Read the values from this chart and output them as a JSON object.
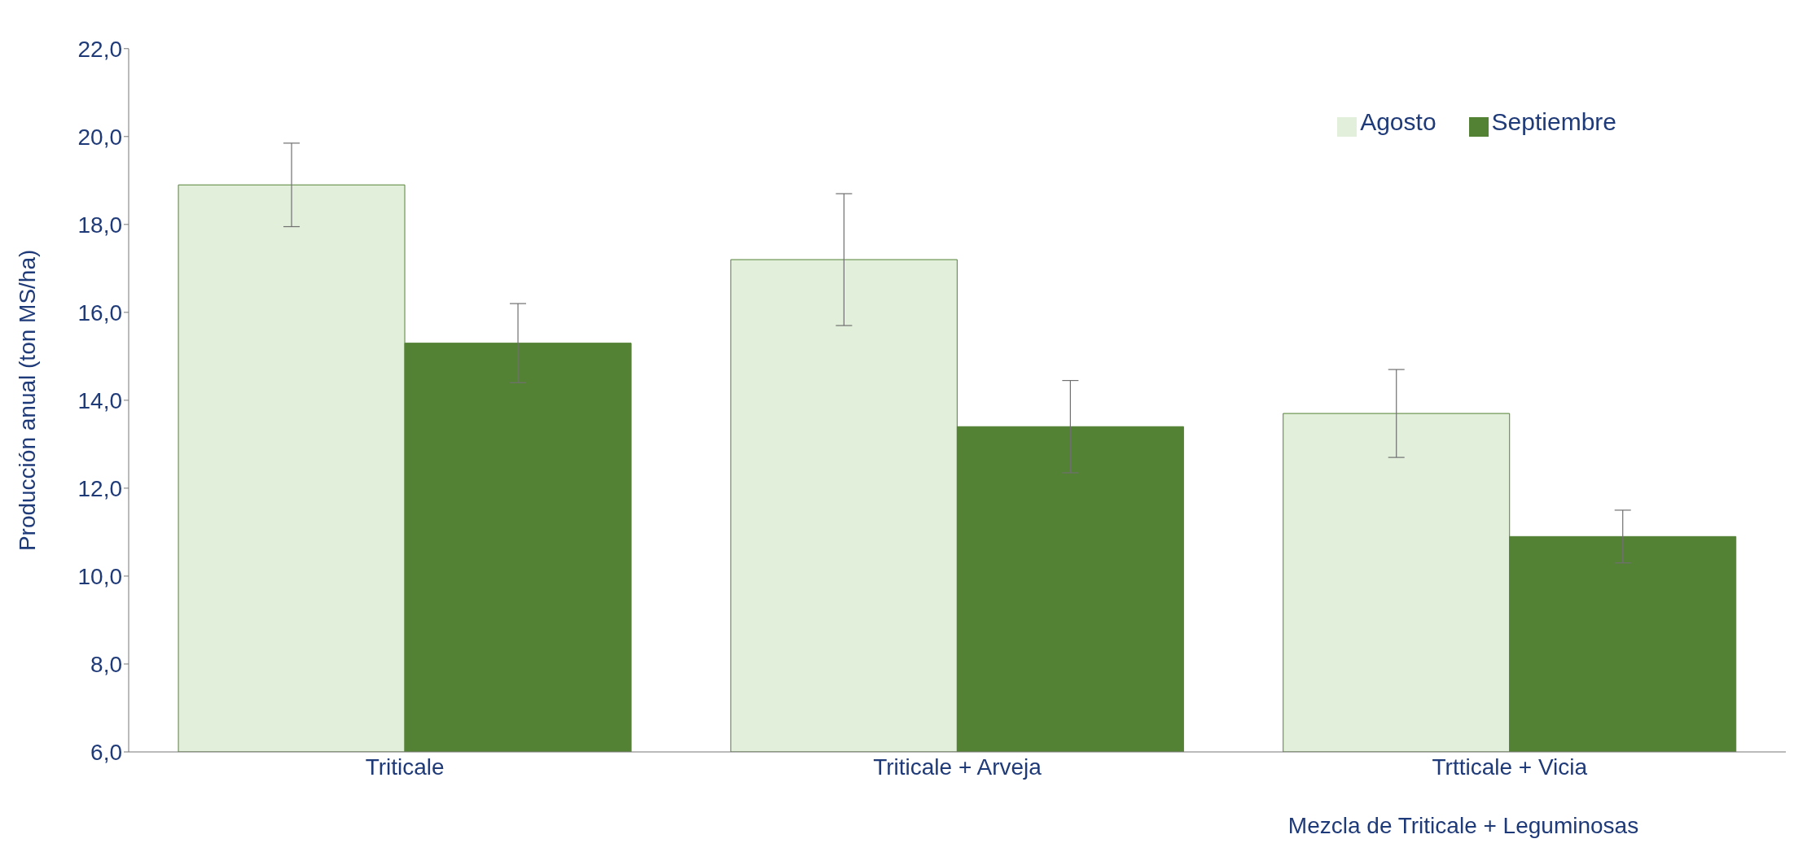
{
  "chart_data": {
    "type": "bar",
    "ylabel": "Producción anual (ton MS/ha)",
    "xlabel": "Mezcla de Triticale + Leguminosas",
    "categories": [
      "Triticale",
      "Triticale + Arveja",
      "Trtticale + Vicia"
    ],
    "series": [
      {
        "name": "Agosto",
        "color": "#e2efda",
        "values": [
          18.9,
          17.2,
          13.7
        ],
        "errors": [
          0.95,
          1.5,
          1.0
        ]
      },
      {
        "name": "Septiembre",
        "color": "#548235",
        "values": [
          15.3,
          13.4,
          10.9
        ],
        "errors": [
          0.9,
          1.05,
          0.6
        ]
      }
    ],
    "ylim": [
      6,
      22
    ],
    "yticks": [
      {
        "value": 6,
        "label": "6,0"
      },
      {
        "value": 8,
        "label": "8,0"
      },
      {
        "value": 10,
        "label": "10,0"
      },
      {
        "value": 12,
        "label": "12,0"
      },
      {
        "value": 14,
        "label": "14,0"
      },
      {
        "value": 16,
        "label": "16,0"
      },
      {
        "value": 18,
        "label": "18,0"
      },
      {
        "value": 20,
        "label": "20,0"
      },
      {
        "value": 22,
        "label": "22,0"
      }
    ],
    "grid": false,
    "legend": "top right"
  }
}
